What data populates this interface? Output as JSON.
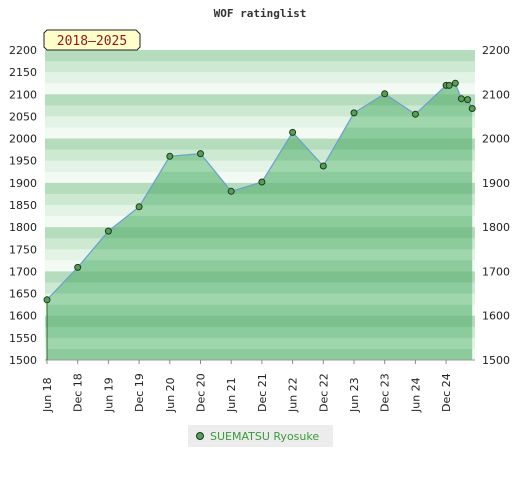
{
  "chart_data": {
    "type": "area",
    "title": "WOF ratinglist",
    "badge": "2018–2025",
    "ylim": [
      1500,
      2200
    ],
    "y_ticks": [
      "1500",
      "1550",
      "1600",
      "1650",
      "1700",
      "1750",
      "1800",
      "1850",
      "1900",
      "1950",
      "2000",
      "2050",
      "2100",
      "2150",
      "2200"
    ],
    "y_ticks_right": [
      "1500",
      "1600",
      "1700",
      "1800",
      "1900",
      "2000",
      "2100",
      "2200"
    ],
    "x_ticks": [
      "Jun 18",
      "Dec 18",
      "Jun 19",
      "Dec 19",
      "Jun 20",
      "Dec 20",
      "Jun 21",
      "Dec 21",
      "Jun 22",
      "Dec 22",
      "Jun 23",
      "Dec 23",
      "Jun 24",
      "Dec 24"
    ],
    "series": [
      {
        "name": "SUEMATSU Ryosuke",
        "color": "#55a055",
        "line_color": "#6a9fd0",
        "x": [
          0,
          1,
          2,
          3,
          4,
          5,
          6,
          7,
          8,
          9,
          10,
          11,
          12,
          13,
          13.1,
          13.3,
          13.5,
          13.7,
          13.85
        ],
        "values": [
          1636,
          1709,
          1791,
          1846,
          1960,
          1966,
          1881,
          1902,
          2014,
          1938,
          2058,
          2101,
          2055,
          2120,
          2120,
          2125,
          2090,
          2088,
          2068
        ]
      }
    ],
    "legend": "bottom-center",
    "grid": false
  }
}
